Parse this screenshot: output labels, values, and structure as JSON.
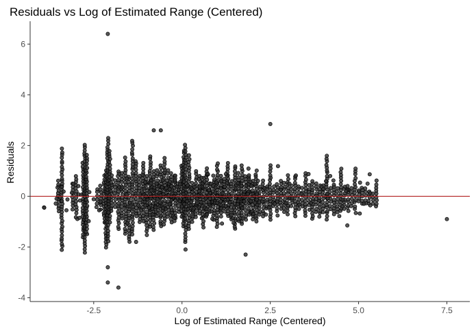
{
  "chart_data": {
    "type": "scatter",
    "title": "Residuals vs Log of Estimated Range (Centered)",
    "xlabel": "Log of Estimated Range (Centered)",
    "ylabel": "Residuals",
    "xlim": [
      -4.3,
      8.15
    ],
    "ylim": [
      -4.15,
      6.9
    ],
    "x_ticks": [
      -2.5,
      0.0,
      2.5,
      5.0,
      7.5
    ],
    "x_tick_labels": [
      "-2.5",
      "0.0",
      "2.5",
      "5.0",
      "7.5"
    ],
    "y_ticks": [
      -4,
      -2,
      0,
      2,
      4,
      6
    ],
    "y_tick_labels": [
      "-4",
      "-2",
      "0",
      "2",
      "4",
      "6"
    ],
    "grid": false,
    "reference_line": {
      "y": 0,
      "color": "#b22222"
    },
    "point_color": "#333333",
    "x_columns": [
      -3.9,
      -3.5,
      -3.4,
      -3.1,
      -3.0,
      -2.8,
      -2.75,
      -2.7,
      -2.4,
      -2.3,
      -2.2,
      -2.15,
      -2.1,
      -2.05,
      -2.0,
      -1.9,
      -1.8,
      -1.7,
      -1.6,
      -1.5,
      -1.4,
      -1.3,
      -1.2,
      -1.1,
      -1.0,
      -0.9,
      -0.8,
      -0.7,
      -0.6,
      -0.5,
      -0.4,
      -0.3,
      -0.2,
      -0.1,
      0.0,
      0.05,
      0.1,
      0.2,
      0.3,
      0.4,
      0.5,
      0.6,
      0.7,
      0.8,
      0.9,
      1.0,
      1.1,
      1.2,
      1.3,
      1.4,
      1.5,
      1.6,
      1.7,
      1.8,
      1.9,
      2.0,
      2.1,
      2.2,
      2.3,
      2.4,
      2.5,
      2.6,
      2.7,
      2.8,
      2.9,
      3.0,
      3.1,
      3.2,
      3.3,
      3.4,
      3.5,
      3.6,
      3.7,
      3.8,
      3.9,
      4.0,
      4.1,
      4.2,
      4.3,
      4.4,
      4.5,
      4.6,
      4.7,
      4.8,
      4.9,
      5.0,
      5.1,
      5.2,
      5.3,
      5.4,
      5.5
    ],
    "x_column_y_ranges": [
      [
        -0.45,
        -0.45
      ],
      [
        -0.6,
        0.6
      ],
      [
        -2.1,
        1.85
      ],
      [
        -0.5,
        0.5
      ],
      [
        -0.8,
        0.8
      ],
      [
        -1.6,
        1.3
      ],
      [
        -2.2,
        2.05
      ],
      [
        -1.5,
        1.6
      ],
      [
        -0.3,
        0.3
      ],
      [
        -0.5,
        0.4
      ],
      [
        -1.0,
        0.8
      ],
      [
        -2.0,
        1.0
      ],
      [
        -1.8,
        2.3
      ],
      [
        -1.0,
        1.8
      ],
      [
        -0.6,
        0.8
      ],
      [
        -0.4,
        0.6
      ],
      [
        -1.3,
        1.0
      ],
      [
        -0.9,
        0.9
      ],
      [
        -1.5,
        1.5
      ],
      [
        -1.8,
        0.8
      ],
      [
        -1.5,
        2.2
      ],
      [
        -0.8,
        1.4
      ],
      [
        -1.0,
        0.8
      ],
      [
        -1.0,
        1.3
      ],
      [
        -1.5,
        0.8
      ],
      [
        -1.2,
        1.6
      ],
      [
        -1.3,
        1.0
      ],
      [
        -0.8,
        1.0
      ],
      [
        -1.2,
        1.2
      ],
      [
        -1.1,
        1.5
      ],
      [
        -0.8,
        1.0
      ],
      [
        -1.0,
        0.9
      ],
      [
        -1.0,
        0.8
      ],
      [
        -0.6,
        0.5
      ],
      [
        -0.8,
        1.2
      ],
      [
        -1.2,
        1.8
      ],
      [
        -1.8,
        2.0
      ],
      [
        -1.3,
        1.6
      ],
      [
        -1.0,
        0.5
      ],
      [
        -0.8,
        1.0
      ],
      [
        -0.7,
        0.8
      ],
      [
        -1.2,
        0.7
      ],
      [
        -0.8,
        1.1
      ],
      [
        -0.6,
        0.5
      ],
      [
        -0.9,
        0.8
      ],
      [
        -1.2,
        1.3
      ],
      [
        -0.8,
        0.8
      ],
      [
        -0.6,
        0.7
      ],
      [
        -0.8,
        1.3
      ],
      [
        -0.9,
        0.6
      ],
      [
        -1.3,
        1.2
      ],
      [
        -1.0,
        0.9
      ],
      [
        -1.1,
        1.2
      ],
      [
        -0.9,
        0.8
      ],
      [
        -0.7,
        0.7
      ],
      [
        -0.9,
        0.6
      ],
      [
        -1.0,
        1.0
      ],
      [
        -0.6,
        0.4
      ],
      [
        -0.8,
        0.6
      ],
      [
        -0.5,
        0.4
      ],
      [
        -0.9,
        1.2
      ],
      [
        -0.4,
        0.4
      ],
      [
        -0.6,
        0.5
      ],
      [
        -0.5,
        0.6
      ],
      [
        -0.6,
        0.5
      ],
      [
        -0.7,
        0.8
      ],
      [
        -0.4,
        0.4
      ],
      [
        -0.8,
        0.8
      ],
      [
        -0.5,
        0.4
      ],
      [
        -0.4,
        0.3
      ],
      [
        -0.8,
        0.9
      ],
      [
        -0.5,
        0.3
      ],
      [
        -0.9,
        0.6
      ],
      [
        -0.6,
        0.5
      ],
      [
        -0.8,
        0.4
      ],
      [
        -0.6,
        0.4
      ],
      [
        -0.9,
        1.6
      ],
      [
        -0.5,
        0.3
      ],
      [
        -0.7,
        0.6
      ],
      [
        -0.4,
        0.3
      ],
      [
        -0.6,
        1.1
      ],
      [
        -0.5,
        0.4
      ],
      [
        -0.6,
        0.4
      ],
      [
        -0.4,
        0.3
      ],
      [
        -0.5,
        1.1
      ],
      [
        -0.2,
        0.2
      ],
      [
        -0.3,
        0.3
      ],
      [
        -0.3,
        0.3
      ],
      [
        -0.3,
        0.2
      ],
      [
        -0.3,
        0.1
      ],
      [
        -0.4,
        0.6
      ]
    ],
    "notable_points": [
      {
        "x": -2.1,
        "y": 6.4
      },
      {
        "x": 2.5,
        "y": 2.85
      },
      {
        "x": -0.8,
        "y": 2.6
      },
      {
        "x": -0.6,
        "y": 2.6
      },
      {
        "x": -2.1,
        "y": -3.4
      },
      {
        "x": -1.8,
        "y": -3.6
      },
      {
        "x": -2.1,
        "y": -2.8
      },
      {
        "x": 1.8,
        "y": -2.3
      },
      {
        "x": 0.1,
        "y": -2.1
      },
      {
        "x": -1.3,
        "y": -1.8
      },
      {
        "x": 7.5,
        "y": -0.9
      },
      {
        "x": -3.9,
        "y": -0.45
      }
    ]
  }
}
